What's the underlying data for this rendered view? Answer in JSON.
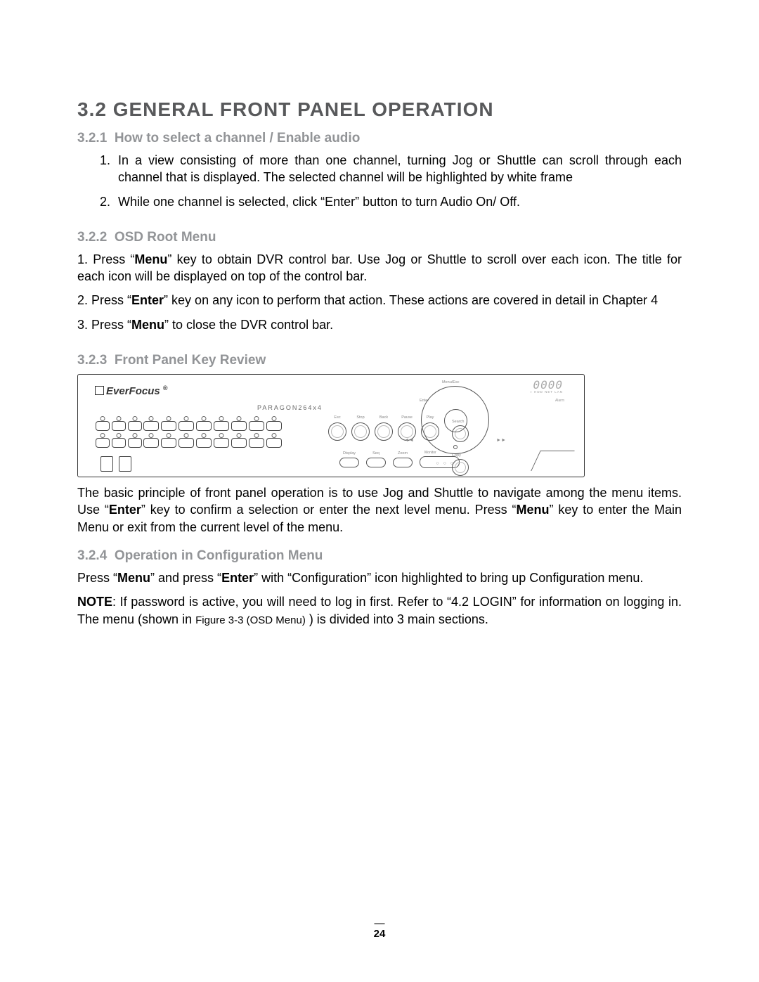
{
  "colors": {
    "h1": "#58595b",
    "h2": "#929497",
    "text": "#000000",
    "panel_stroke": "#333333",
    "background": "#ffffff"
  },
  "typography": {
    "h1_fontsize": 28,
    "h2_fontsize": 19,
    "body_fontsize": 18,
    "pagenum_fontsize": 15,
    "font_family": "Arial"
  },
  "heading": {
    "number": "3.2",
    "title": "GENERAL FRONT PANEL OPERATION"
  },
  "sections": {
    "s1": {
      "number": "3.2.1",
      "title": "How to select a channel / Enable audio",
      "list": [
        "In a view consisting of more than one channel, turning Jog or Shuttle can scroll through each channel that is displayed. The selected channel will be highlighted by white frame",
        "While one channel is selected, click “Enter” button to turn Audio On/ Off."
      ]
    },
    "s2": {
      "number": "3.2.2",
      "title": "OSD Root Menu",
      "p1_a": "1. Press “",
      "p1_b": "Menu",
      "p1_c": "” key to obtain DVR control bar. Use Jog or Shuttle to scroll over each icon. The title for each icon will be displayed on top of the control bar.",
      "p2_a": "2. Press “",
      "p2_b": "Enter",
      "p2_c": "” key on any icon to perform that action. These actions are covered in detail in Chapter 4",
      "p3_a": "3. Press “",
      "p3_b": "Menu",
      "p3_c": "” to close the DVR control bar."
    },
    "s3": {
      "number": "3.2.3",
      "title": "Front Panel Key Review",
      "desc_a": "The basic principle of front panel operation is to use Jog and Shuttle to navigate among the menu items. Use “",
      "desc_b": "Enter",
      "desc_c": "” key to confirm a selection or enter the next level menu. Press “",
      "desc_d": "Menu",
      "desc_e": "” key to enter the Main Menu or exit from the current level of the menu."
    },
    "s4": {
      "number": "3.2.4",
      "title": "Operation in Configuration Menu",
      "p1_a": "Press “",
      "p1_b": "Menu",
      "p1_c": "” and press “",
      "p1_d": "Enter",
      "p1_e": "” with “Configuration” icon highlighted to bring up Configuration menu.",
      "p2_a": "NOTE",
      "p2_b": ": If password is active, you will need to log in first. Refer to “4.2 LOGIN” for information on logging in. The menu (shown in ",
      "p2_c": "Figure 3-3 (OSD Menu)",
      "p2_d": " ) is divided into 3 main sections."
    }
  },
  "panel": {
    "logo": "EverFocus",
    "model": "PARAGON264x4",
    "seven_seg": "0000",
    "status_leds": "○ HDD NET LAN",
    "alarm": "Alarm",
    "round_labels": [
      "Esc",
      "Stop",
      "Back",
      "Pause",
      "Play"
    ],
    "oval_labels": [
      "Display",
      "Seq",
      "Zoom"
    ],
    "monitor_label": "Monitor",
    "monitor_leds": "○ ○ ○",
    "search_label": "Search",
    "copy_label": "Copy",
    "enter_label": "Enter",
    "menu_label": "Menu/Esc",
    "arrow_left": "◄◄",
    "arrow_right": "►►",
    "channel_button_groups": {
      "top_small": 3,
      "top_large": 8,
      "bottom_small": 3,
      "bottom_large": 8
    },
    "usb_count": 2
  },
  "page_number": "24"
}
